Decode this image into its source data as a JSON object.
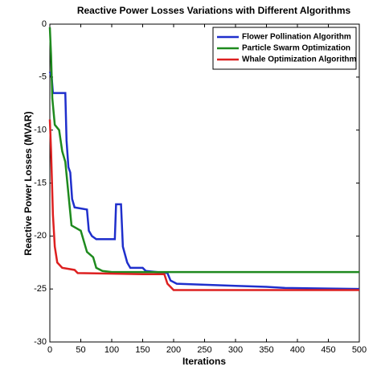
{
  "chart_data": {
    "type": "line",
    "title": "Reactive Power Losses Variations with Different Algorithms",
    "x_label": "Iterations",
    "y_label": "Reactive Power Losses (MVAR)",
    "xlim": [
      0,
      500
    ],
    "xticks": [
      0,
      50,
      100,
      150,
      200,
      250,
      300,
      350,
      400,
      450,
      500
    ],
    "ylim": [
      -30,
      0
    ],
    "yticks": [
      -30,
      -25,
      -20,
      -15,
      -10,
      -5,
      0
    ],
    "legend": "upper-right",
    "series": [
      {
        "name": "Flower Pollination Algorithm",
        "color": "#1f2fcc",
        "x": [
          0,
          3,
          5,
          25,
          27,
          30,
          33,
          36,
          40,
          60,
          63,
          68,
          75,
          105,
          107,
          115,
          118,
          125,
          130,
          150,
          155,
          190,
          195,
          205,
          250,
          300,
          350,
          380,
          500
        ],
        "values": [
          -4.5,
          -5,
          -6.5,
          -6.5,
          -11,
          -13.5,
          -14,
          -16.5,
          -17.3,
          -17.5,
          -19.5,
          -20,
          -20.3,
          -20.3,
          -17,
          -17,
          -21,
          -22.5,
          -23,
          -23,
          -23.3,
          -23.5,
          -24.2,
          -24.5,
          -24.6,
          -24.7,
          -24.8,
          -24.9,
          -25
        ]
      },
      {
        "name": "Particle Swarm Optimization",
        "color": "#1e8a1e",
        "x": [
          0,
          2,
          4,
          8,
          15,
          20,
          25,
          30,
          35,
          50,
          55,
          60,
          70,
          75,
          85,
          100,
          500
        ],
        "values": [
          -0.3,
          -3,
          -7,
          -9.5,
          -10,
          -12,
          -13,
          -16,
          -19,
          -19.5,
          -20.5,
          -21.5,
          -22,
          -23,
          -23.3,
          -23.4,
          -23.4
        ]
      },
      {
        "name": "Whale Optimization Algorithm",
        "color": "#dd2020",
        "x": [
          0,
          2,
          5,
          8,
          12,
          20,
          40,
          45,
          150,
          185,
          190,
          200,
          500
        ],
        "values": [
          -9,
          -12,
          -18,
          -21,
          -22.5,
          -23,
          -23.2,
          -23.5,
          -23.6,
          -23.6,
          -24.5,
          -25.1,
          -25.1
        ]
      }
    ]
  }
}
